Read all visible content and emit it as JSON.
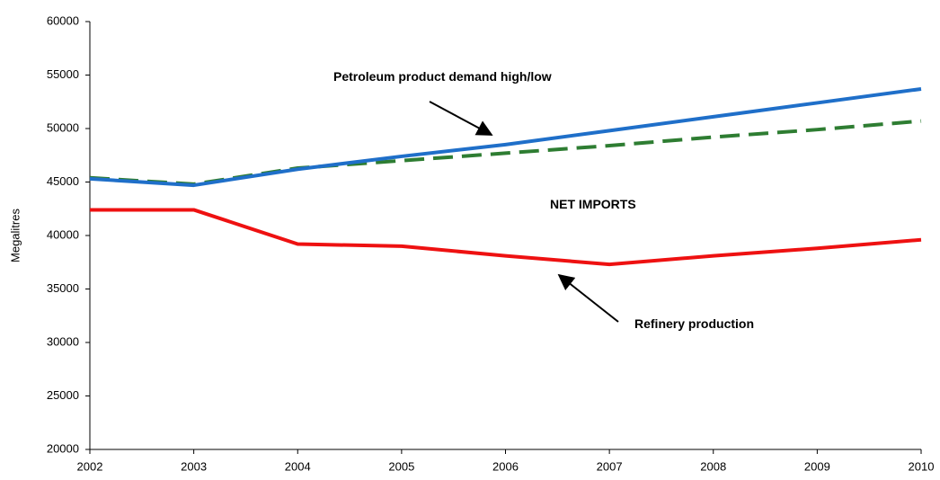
{
  "chart_data": {
    "type": "line",
    "y_label": "Megalitres",
    "x": [
      2002,
      2003,
      2004,
      2005,
      2006,
      2007,
      2008,
      2009,
      2010
    ],
    "xlim": [
      2002,
      2010
    ],
    "xticks": [
      2002,
      2003,
      2004,
      2005,
      2006,
      2007,
      2008,
      2009,
      2010
    ],
    "ylim": [
      20000,
      60000
    ],
    "yticks": [
      20000,
      25000,
      30000,
      35000,
      40000,
      45000,
      50000,
      55000,
      60000
    ],
    "grid": false,
    "series": [
      {
        "color": "#2e7d32",
        "dash": true,
        "values": [
          45400,
          44800,
          46300,
          47000,
          47700,
          48400,
          49200,
          49900,
          50700
        ]
      },
      {
        "color": "#1f6fc9",
        "dash": false,
        "values": [
          45300,
          44700,
          46200,
          47400,
          48500,
          49800,
          51100,
          52400,
          53700
        ]
      },
      {
        "color": "#ee1111",
        "dash": false,
        "values": [
          42400,
          42400,
          39200,
          39000,
          38100,
          37300,
          38100,
          38800,
          39600
        ]
      }
    ],
    "annotations": [
      "Petroleum product demand high/low",
      "NET IMPORTS",
      "Refinery production"
    ]
  }
}
